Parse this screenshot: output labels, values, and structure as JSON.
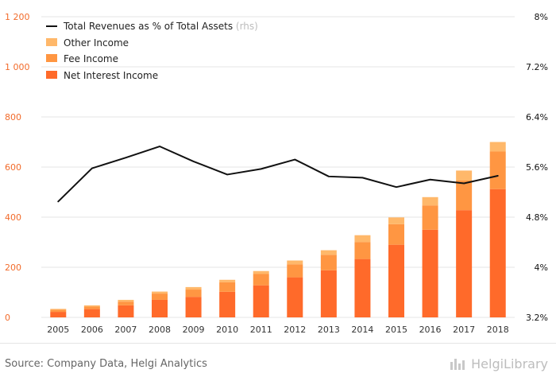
{
  "chart_data": {
    "type": "bar",
    "title": "",
    "xlabel": "",
    "ylabel": "",
    "categories": [
      "2005",
      "2006",
      "2007",
      "2008",
      "2009",
      "2010",
      "2011",
      "2012",
      "2013",
      "2014",
      "2015",
      "2016",
      "2017",
      "2018"
    ],
    "series": [
      {
        "name": "Net Interest Income",
        "values": [
          22,
          33,
          48,
          70,
          82,
          102,
          128,
          160,
          188,
          233,
          290,
          350,
          428,
          512
        ],
        "color": "#ff6a2a",
        "axis": "left",
        "stack": "income"
      },
      {
        "name": "Fee Income",
        "values": [
          8,
          10,
          15,
          25,
          29,
          38,
          45,
          52,
          62,
          68,
          82,
          97,
          118,
          150
        ],
        "color": "#ff9642",
        "axis": "left",
        "stack": "income"
      },
      {
        "name": "Other Income",
        "values": [
          4,
          5,
          7,
          8,
          10,
          10,
          12,
          15,
          18,
          27,
          27,
          33,
          40,
          38
        ],
        "color": "#ffb86a",
        "axis": "left",
        "stack": "income"
      },
      {
        "name": "Total Revenues as % of Total Assets",
        "values": [
          5.05,
          5.58,
          5.75,
          5.93,
          5.69,
          5.48,
          5.57,
          5.72,
          5.45,
          5.43,
          5.28,
          5.4,
          5.34,
          5.46
        ],
        "color": "#111111",
        "axis": "right",
        "type": "line"
      }
    ],
    "y_left": {
      "min": 0,
      "max": 1200,
      "ticks": [
        0,
        200,
        400,
        600,
        800,
        1000,
        1200
      ],
      "tick_labels": [
        "0",
        "200",
        "400",
        "600",
        "800",
        "1 000",
        "1 200"
      ],
      "color": "#f26b2b"
    },
    "y_right": {
      "min": 3.2,
      "max": 8.0,
      "ticks": [
        3.2,
        4.0,
        4.8,
        5.6,
        6.4,
        7.2,
        8.0
      ],
      "tick_labels": [
        "3.2%",
        "4%",
        "4.8%",
        "5.6%",
        "6.4%",
        "7.2%",
        "8%"
      ],
      "color": "#111111"
    },
    "grid": true,
    "legend": {
      "placement": "top-left",
      "entries": [
        {
          "name": "Total Revenues as % of Total Assets",
          "suffix": "(rhs)",
          "marker": "line",
          "color": "#111111"
        },
        {
          "name": "Other Income",
          "marker": "box",
          "color": "#ffb86a"
        },
        {
          "name": "Fee Income",
          "marker": "box",
          "color": "#ff9642"
        },
        {
          "name": "Net Interest Income",
          "marker": "box",
          "color": "#ff6a2a"
        }
      ]
    }
  },
  "footer": {
    "source_text": "Source: Company Data, Helgi Analytics",
    "brand_text": "HelgiLibrary"
  }
}
